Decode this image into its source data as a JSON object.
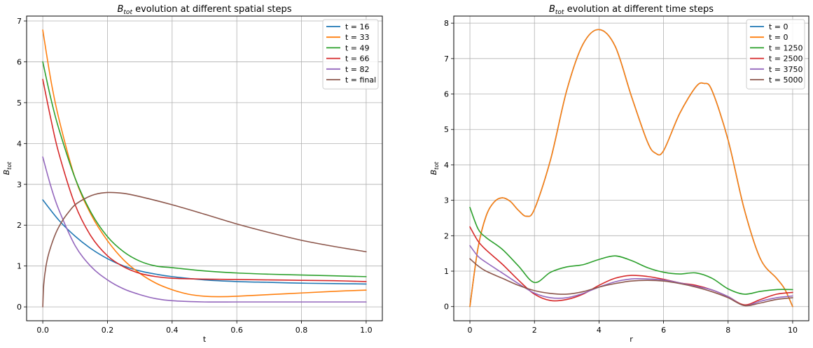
{
  "chart_data": [
    {
      "type": "line",
      "title_main": "B",
      "title_sub": "tot",
      "title_rest": " evolution at different spatial steps",
      "xlabel": "t",
      "ylabel_main": "B",
      "ylabel_sub": "tot",
      "xlim": [
        -0.05,
        1.05
      ],
      "ylim": [
        -0.34,
        7.12
      ],
      "xticks": [
        0.0,
        0.2,
        0.4,
        0.6,
        0.8,
        1.0
      ],
      "xtick_labels": [
        "0.0",
        "0.2",
        "0.4",
        "0.6",
        "0.8",
        "1.0"
      ],
      "yticks": [
        0,
        1,
        2,
        3,
        4,
        5,
        6,
        7
      ],
      "ytick_labels": [
        "0",
        "1",
        "2",
        "3",
        "4",
        "5",
        "6",
        "7"
      ],
      "grid": true,
      "legend_position": "top-right",
      "series": [
        {
          "name": "t = 16",
          "color": "#1f77b4",
          "x": [
            0,
            0.05,
            0.1,
            0.15,
            0.2,
            0.25,
            0.3,
            0.35,
            0.4,
            0.5,
            0.6,
            0.7,
            0.8,
            0.9,
            1.0
          ],
          "y": [
            2.62,
            2.12,
            1.73,
            1.42,
            1.18,
            1.0,
            0.88,
            0.8,
            0.74,
            0.66,
            0.62,
            0.6,
            0.58,
            0.57,
            0.56
          ]
        },
        {
          "name": "t = 33",
          "color": "#ff7f0e",
          "x": [
            0,
            0.025,
            0.05,
            0.1,
            0.15,
            0.2,
            0.25,
            0.3,
            0.35,
            0.4,
            0.45,
            0.5,
            0.55,
            0.6,
            0.7,
            0.8,
            0.9,
            1.0
          ],
          "y": [
            6.78,
            5.55,
            4.6,
            3.15,
            2.25,
            1.62,
            1.15,
            0.82,
            0.58,
            0.42,
            0.31,
            0.26,
            0.25,
            0.26,
            0.3,
            0.34,
            0.38,
            0.41
          ]
        },
        {
          "name": "t = 49",
          "color": "#2ca02c",
          "x": [
            0,
            0.025,
            0.05,
            0.1,
            0.15,
            0.2,
            0.25,
            0.3,
            0.35,
            0.4,
            0.5,
            0.6,
            0.7,
            0.8,
            0.9,
            1.0
          ],
          "y": [
            6.0,
            5.1,
            4.35,
            3.15,
            2.3,
            1.72,
            1.35,
            1.12,
            1.0,
            0.96,
            0.88,
            0.83,
            0.8,
            0.78,
            0.76,
            0.74
          ]
        },
        {
          "name": "t = 66",
          "color": "#d62728",
          "x": [
            0,
            0.025,
            0.05,
            0.1,
            0.15,
            0.2,
            0.25,
            0.3,
            0.35,
            0.4,
            0.5,
            0.6,
            0.7,
            0.8,
            0.9,
            1.0
          ],
          "y": [
            5.57,
            4.6,
            3.75,
            2.5,
            1.72,
            1.25,
            0.98,
            0.82,
            0.74,
            0.7,
            0.68,
            0.67,
            0.66,
            0.65,
            0.64,
            0.62
          ]
        },
        {
          "name": "t = 82",
          "color": "#9467bd",
          "x": [
            0,
            0.025,
            0.05,
            0.1,
            0.15,
            0.2,
            0.25,
            0.3,
            0.35,
            0.4,
            0.5,
            0.6,
            0.7,
            0.8,
            0.9,
            1.0
          ],
          "y": [
            3.67,
            2.95,
            2.37,
            1.5,
            0.98,
            0.66,
            0.44,
            0.3,
            0.2,
            0.15,
            0.12,
            0.12,
            0.12,
            0.12,
            0.12,
            0.12
          ]
        },
        {
          "name": "t = final",
          "color": "#8c564b",
          "x": [
            0,
            0.003,
            0.01,
            0.02,
            0.04,
            0.06,
            0.08,
            0.1,
            0.13,
            0.16,
            0.2,
            0.25,
            0.3,
            0.4,
            0.5,
            0.6,
            0.7,
            0.8,
            0.9,
            1.0
          ],
          "y": [
            0.0,
            0.55,
            1.0,
            1.35,
            1.8,
            2.1,
            2.32,
            2.5,
            2.65,
            2.75,
            2.8,
            2.78,
            2.7,
            2.5,
            2.27,
            2.03,
            1.82,
            1.63,
            1.48,
            1.35
          ]
        }
      ]
    },
    {
      "type": "line",
      "title_main": "B",
      "title_sub": "tot",
      "title_rest": " evolution at different time steps",
      "xlabel": "r",
      "ylabel_main": "B",
      "ylabel_sub": "tot",
      "xlim": [
        -0.5,
        10.5
      ],
      "ylim": [
        -0.4,
        8.2
      ],
      "xticks": [
        0,
        2,
        4,
        6,
        8,
        10
      ],
      "xtick_labels": [
        "0",
        "2",
        "4",
        "6",
        "8",
        "10"
      ],
      "yticks": [
        0,
        1,
        2,
        3,
        4,
        5,
        6,
        7,
        8
      ],
      "ytick_labels": [
        "0",
        "1",
        "2",
        "3",
        "4",
        "5",
        "6",
        "7",
        "8"
      ],
      "grid": true,
      "legend_position": "top-right",
      "series": [
        {
          "name": "t = 0",
          "color": "#1f77b4",
          "x": [
            0,
            0.25,
            0.5,
            0.75,
            1.0,
            1.25,
            1.5,
            1.75,
            2.0,
            2.5,
            3.0,
            3.5,
            4.0,
            4.5,
            5.0,
            5.5,
            5.75,
            6.0,
            6.5,
            7.0,
            7.25,
            7.5,
            8.0,
            8.5,
            9.0,
            9.5,
            9.75,
            10.0
          ],
          "y": [
            0.0,
            1.65,
            2.55,
            2.95,
            3.07,
            2.97,
            2.72,
            2.55,
            2.75,
            4.15,
            6.1,
            7.4,
            7.82,
            7.35,
            5.95,
            4.65,
            4.33,
            4.4,
            5.45,
            6.2,
            6.3,
            6.1,
            4.7,
            2.75,
            1.35,
            0.8,
            0.5,
            0.0
          ]
        },
        {
          "name": "t = 0",
          "color": "#ff7f0e",
          "x": [
            0,
            0.25,
            0.5,
            0.75,
            1.0,
            1.25,
            1.5,
            1.75,
            2.0,
            2.5,
            3.0,
            3.5,
            4.0,
            4.5,
            5.0,
            5.5,
            5.75,
            6.0,
            6.5,
            7.0,
            7.25,
            7.5,
            8.0,
            8.5,
            9.0,
            9.5,
            9.75,
            10.0
          ],
          "y": [
            0.0,
            1.65,
            2.55,
            2.95,
            3.07,
            2.97,
            2.72,
            2.55,
            2.75,
            4.15,
            6.1,
            7.4,
            7.82,
            7.35,
            5.95,
            4.65,
            4.33,
            4.4,
            5.45,
            6.2,
            6.3,
            6.1,
            4.7,
            2.75,
            1.35,
            0.8,
            0.5,
            0.0
          ]
        },
        {
          "name": "t = 1250",
          "color": "#2ca02c",
          "x": [
            0,
            0.25,
            0.5,
            1.0,
            1.5,
            2.0,
            2.5,
            3.0,
            3.5,
            4.0,
            4.5,
            5.0,
            5.5,
            6.0,
            6.5,
            7.0,
            7.5,
            8.0,
            8.5,
            9.0,
            9.5,
            10.0
          ],
          "y": [
            2.8,
            2.2,
            1.95,
            1.62,
            1.15,
            0.68,
            0.97,
            1.12,
            1.18,
            1.33,
            1.43,
            1.3,
            1.1,
            0.97,
            0.92,
            0.95,
            0.8,
            0.5,
            0.35,
            0.43,
            0.48,
            0.48
          ]
        },
        {
          "name": "t = 2500",
          "color": "#d62728",
          "x": [
            0,
            0.25,
            0.5,
            1.0,
            1.5,
            2.0,
            2.5,
            3.0,
            3.5,
            4.0,
            4.5,
            5.0,
            5.5,
            6.0,
            6.5,
            7.0,
            7.5,
            8.0,
            8.5,
            9.0,
            9.5,
            10.0
          ],
          "y": [
            2.25,
            1.85,
            1.6,
            1.2,
            0.75,
            0.35,
            0.17,
            0.2,
            0.35,
            0.6,
            0.8,
            0.88,
            0.85,
            0.77,
            0.67,
            0.6,
            0.47,
            0.28,
            0.05,
            0.2,
            0.35,
            0.4
          ]
        },
        {
          "name": "t = 3750",
          "color": "#9467bd",
          "x": [
            0,
            0.25,
            0.5,
            1.0,
            1.5,
            2.0,
            2.5,
            3.0,
            3.5,
            4.0,
            4.5,
            5.0,
            5.5,
            6.0,
            6.5,
            7.0,
            7.5,
            8.0,
            8.5,
            9.0,
            9.5,
            10.0
          ],
          "y": [
            1.72,
            1.42,
            1.25,
            0.95,
            0.65,
            0.38,
            0.25,
            0.25,
            0.37,
            0.55,
            0.7,
            0.78,
            0.78,
            0.75,
            0.67,
            0.57,
            0.47,
            0.28,
            0.03,
            0.15,
            0.25,
            0.3
          ]
        },
        {
          "name": "t = 5000",
          "color": "#8c564b",
          "x": [
            0,
            0.25,
            0.5,
            1.0,
            1.5,
            2.0,
            2.5,
            3.0,
            3.5,
            4.0,
            4.5,
            5.0,
            5.5,
            6.0,
            6.5,
            7.0,
            7.5,
            8.0,
            8.5,
            9.0,
            9.5,
            10.0
          ],
          "y": [
            1.35,
            1.15,
            1.0,
            0.8,
            0.6,
            0.45,
            0.37,
            0.35,
            0.42,
            0.55,
            0.65,
            0.72,
            0.74,
            0.72,
            0.65,
            0.55,
            0.42,
            0.25,
            0.03,
            0.1,
            0.2,
            0.25
          ]
        }
      ]
    }
  ]
}
